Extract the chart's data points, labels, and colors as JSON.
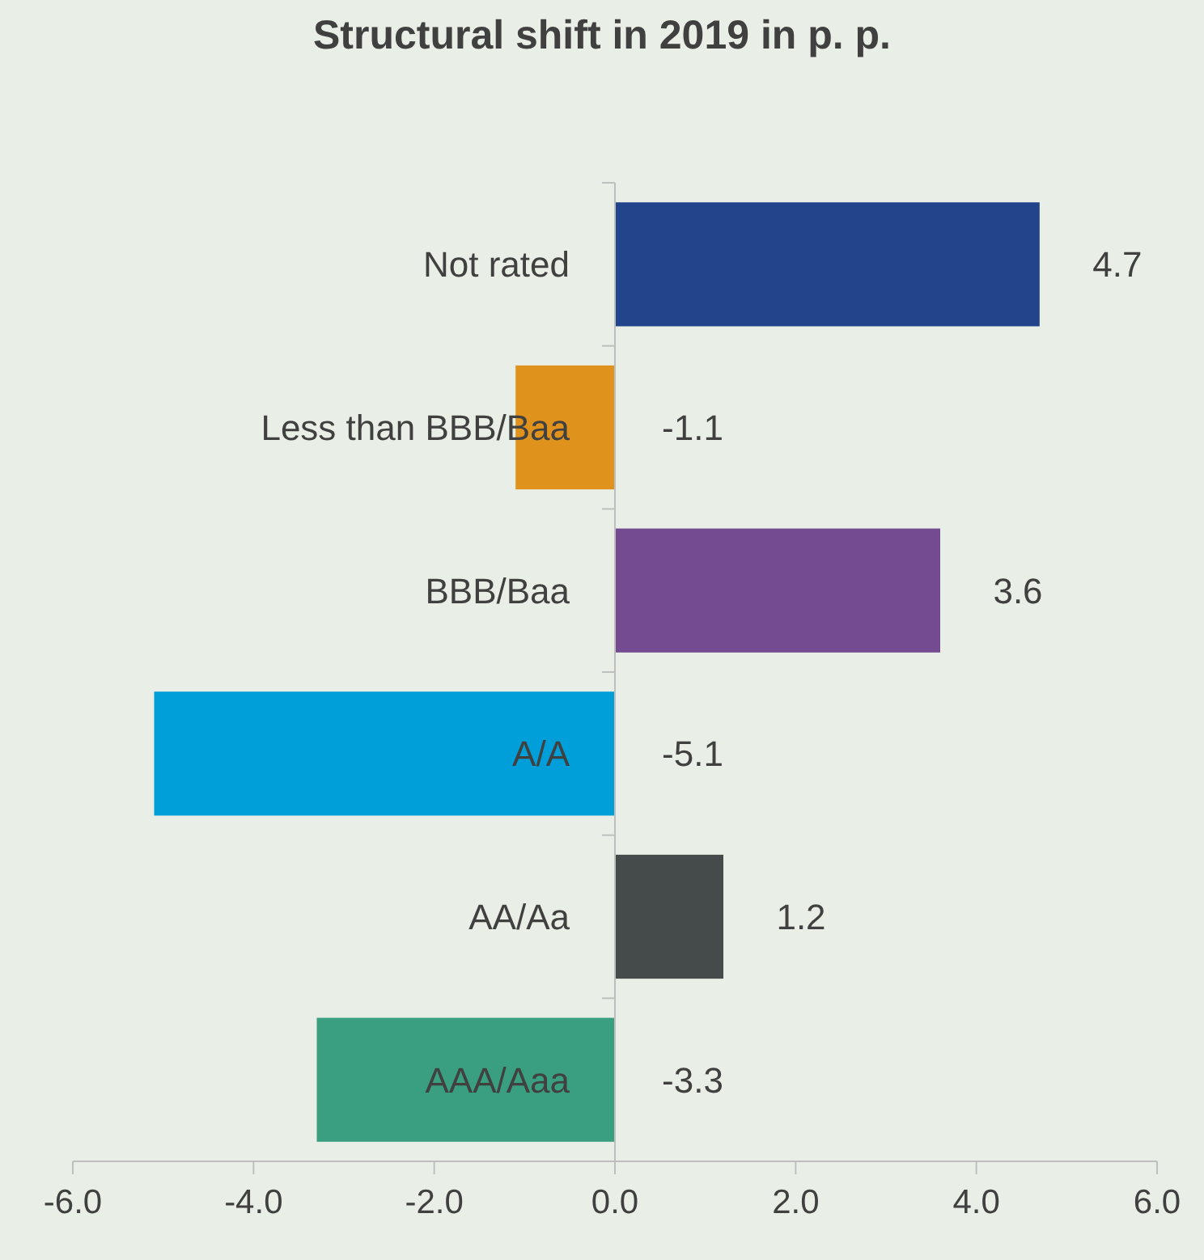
{
  "chart_data": {
    "type": "bar",
    "orientation": "horizontal",
    "title": "Structural shift in 2019 in p. p.",
    "categories": [
      "Not rated",
      "Less than BBB/Baa",
      "BBB/Baa",
      "A/A",
      "AA/Aa",
      "AAA/Aaa"
    ],
    "values": [
      4.7,
      -1.1,
      3.6,
      -5.1,
      1.2,
      -3.3
    ],
    "colors": [
      "#21448a",
      "#e0931c",
      "#744a90",
      "#009fd9",
      "#454a4a",
      "#3a9f80"
    ],
    "xlim": [
      -6,
      6
    ],
    "xticks": [
      {
        "value": -6,
        "label": "-6.0"
      },
      {
        "value": -4,
        "label": "-4.0"
      },
      {
        "value": -2,
        "label": "-2.0"
      },
      {
        "value": 0,
        "label": "0.0"
      },
      {
        "value": 2,
        "label": "2.0"
      },
      {
        "value": 4,
        "label": "4.0"
      },
      {
        "value": 6,
        "label": "6.0"
      }
    ],
    "data_labels": true
  }
}
